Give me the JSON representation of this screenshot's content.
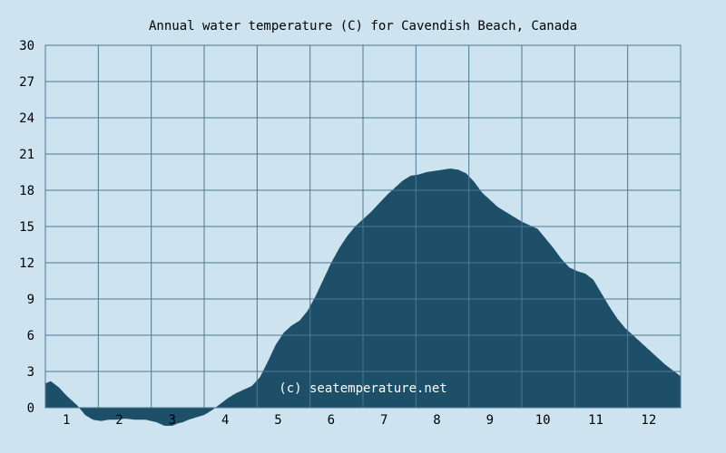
{
  "chart_data": {
    "type": "area",
    "title": "Annual water temperature (C) for Cavendish Beach, Canada",
    "xlabel": "",
    "ylabel": "",
    "x_ticks": [
      "1",
      "2",
      "3",
      "4",
      "5",
      "6",
      "7",
      "8",
      "9",
      "10",
      "11",
      "12"
    ],
    "ylim": [
      0,
      30
    ],
    "y_ticks": [
      "0",
      "3",
      "6",
      "9",
      "12",
      "15",
      "18",
      "21",
      "24",
      "27",
      "30"
    ],
    "xlim": [
      0.5,
      12.5
    ],
    "grid": true,
    "watermark": "(c) seatemperature.net",
    "colors": {
      "background": "#cde3ef",
      "fill": "#1e4f69",
      "grid": "#4d7891",
      "text": "#000000"
    },
    "series": [
      {
        "x": [
          0.5,
          0.6,
          0.75,
          0.9,
          1.0,
          1.1,
          1.25,
          1.4,
          1.55,
          1.7,
          1.85,
          2.0,
          2.2,
          2.4,
          2.6,
          2.75,
          2.9,
          3.0,
          3.1,
          3.2,
          3.35,
          3.5,
          3.65,
          3.8,
          3.95,
          4.1,
          4.25,
          4.4,
          4.55,
          4.7,
          4.85,
          5.0,
          5.15,
          5.3,
          5.45,
          5.6,
          5.75,
          5.9,
          6.05,
          6.2,
          6.35,
          6.5,
          6.65,
          6.8,
          6.95,
          7.1,
          7.25,
          7.4,
          7.55,
          7.7,
          7.85,
          8.0,
          8.15,
          8.3,
          8.45,
          8.6,
          8.75,
          8.9,
          9.05,
          9.2,
          9.35,
          9.5,
          9.65,
          9.8,
          9.95,
          10.1,
          10.25,
          10.4,
          10.55,
          10.7,
          10.85,
          11.0,
          11.15,
          11.3,
          11.45,
          11.6,
          11.75,
          11.9,
          12.05,
          12.2,
          12.35,
          12.5
        ],
        "values": [
          2.0,
          2.2,
          1.7,
          1.0,
          0.6,
          0.2,
          -0.6,
          -1.0,
          -1.1,
          -1.0,
          -1.0,
          -0.9,
          -1.0,
          -1.0,
          -1.2,
          -1.5,
          -1.5,
          -1.3,
          -1.2,
          -1.0,
          -0.8,
          -0.6,
          -0.2,
          0.3,
          0.8,
          1.2,
          1.5,
          1.8,
          2.5,
          3.8,
          5.2,
          6.2,
          6.8,
          7.2,
          8.0,
          9.2,
          10.6,
          12.0,
          13.2,
          14.2,
          15.0,
          15.6,
          16.2,
          16.9,
          17.6,
          18.2,
          18.8,
          19.2,
          19.3,
          19.5,
          19.6,
          19.7,
          19.8,
          19.7,
          19.4,
          18.7,
          17.8,
          17.2,
          16.6,
          16.2,
          15.8,
          15.4,
          15.1,
          14.8,
          14.0,
          13.2,
          12.3,
          11.6,
          11.3,
          11.1,
          10.6,
          9.5,
          8.4,
          7.4,
          6.6,
          6.0,
          5.4,
          4.8,
          4.2,
          3.6,
          3.1,
          2.6
        ]
      }
    ]
  }
}
